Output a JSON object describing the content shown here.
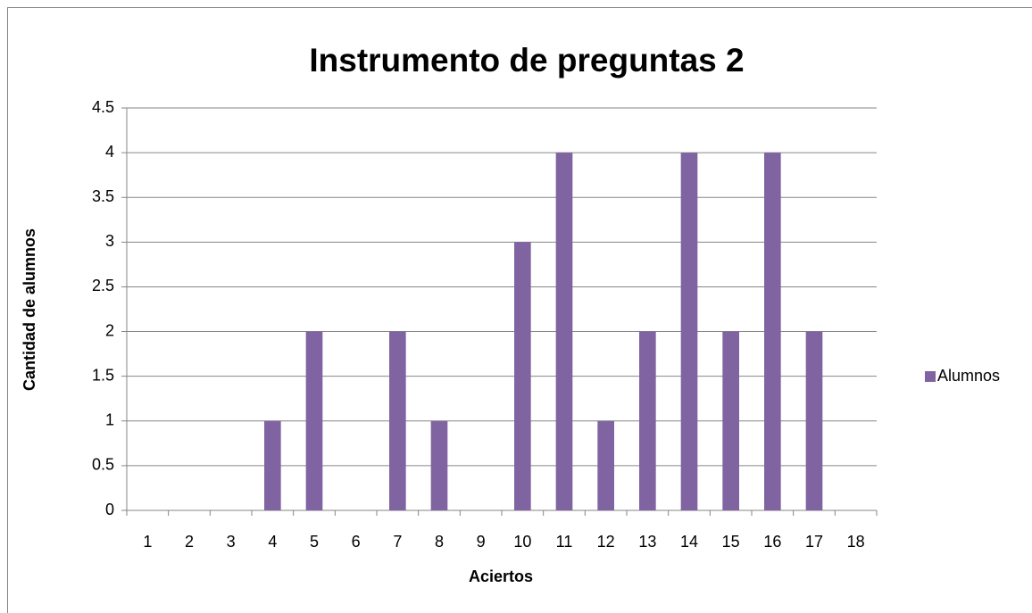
{
  "chart_data": {
    "type": "bar",
    "title": "Instrumento de preguntas 2",
    "x_label": "Aciertos",
    "y_label": "Cantidad de alumnos",
    "categories": [
      "1",
      "2",
      "3",
      "4",
      "5",
      "6",
      "7",
      "8",
      "9",
      "10",
      "11",
      "12",
      "13",
      "14",
      "15",
      "16",
      "17",
      "18"
    ],
    "series": [
      {
        "name": "Alumnos",
        "color": "#8064a2",
        "values": [
          0,
          0,
          0,
          1,
          2,
          0,
          2,
          1,
          0,
          3,
          4,
          1,
          2,
          4,
          2,
          4,
          2,
          0
        ]
      }
    ],
    "ylim": [
      0,
      4.5
    ],
    "yticks": [
      0,
      0.5,
      1,
      1.5,
      2,
      2.5,
      3,
      3.5,
      4,
      4.5
    ],
    "grid": true,
    "legend": "right"
  }
}
